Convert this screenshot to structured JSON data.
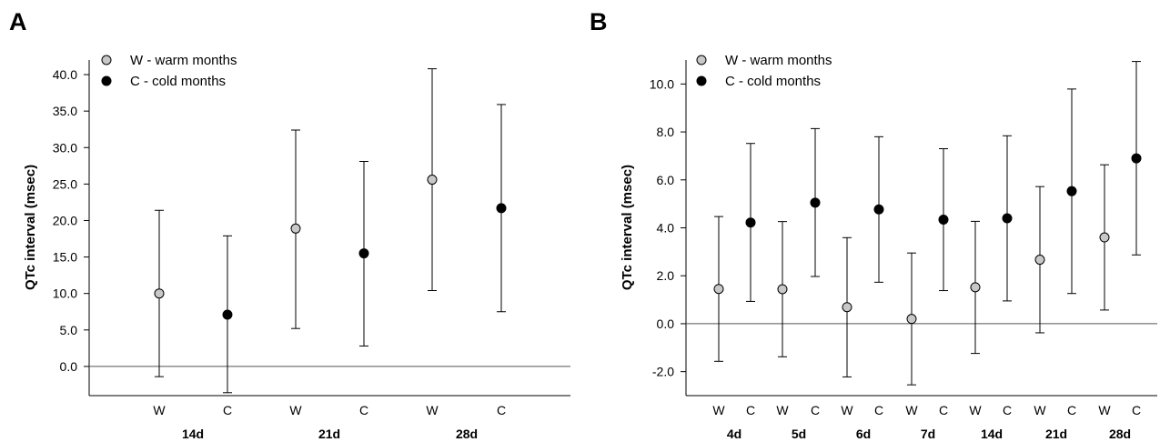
{
  "chart_data": [
    {
      "panel_label": "A",
      "type": "scatter",
      "ylabel": "QTc interval (msec)",
      "ylim": [
        -4,
        42
      ],
      "yticks": [
        0,
        5,
        10,
        15,
        20,
        25,
        30,
        35,
        40
      ],
      "ytick_labels": [
        "0.0",
        "5.0",
        "10.0",
        "15.0",
        "20.0",
        "25.0",
        "30.0",
        "35.0",
        "40.0"
      ],
      "zero_line": true,
      "grid": false,
      "legend_position": "top-left",
      "legend": [
        {
          "label": "W - warm months",
          "color": "#c8c8c8"
        },
        {
          "label": "C - cold months",
          "color": "#000000"
        }
      ],
      "groups": [
        {
          "label": "14d",
          "points": [
            {
              "category": "W",
              "season": "warm",
              "mean": 10.0,
              "lower": -1.4,
              "upper": 21.4
            },
            {
              "category": "C",
              "season": "cold",
              "mean": 7.1,
              "lower": -3.6,
              "upper": 17.9
            }
          ]
        },
        {
          "label": "21d",
          "points": [
            {
              "category": "W",
              "season": "warm",
              "mean": 18.9,
              "lower": 5.2,
              "upper": 32.4
            },
            {
              "category": "C",
              "season": "cold",
              "mean": 15.5,
              "lower": 2.8,
              "upper": 28.1
            }
          ]
        },
        {
          "label": "28d",
          "points": [
            {
              "category": "W",
              "season": "warm",
              "mean": 25.6,
              "lower": 10.4,
              "upper": 40.8
            },
            {
              "category": "C",
              "season": "cold",
              "mean": 21.7,
              "lower": 7.5,
              "upper": 35.9
            }
          ]
        }
      ]
    },
    {
      "panel_label": "B",
      "type": "scatter",
      "ylabel": "QTc interval (msec)",
      "ylim": [
        -3,
        11
      ],
      "yticks": [
        -2,
        0,
        2,
        4,
        6,
        8,
        10
      ],
      "ytick_labels": [
        "-2.0",
        "0.0",
        "2.0",
        "4.0",
        "6.0",
        "8.0",
        "10.0"
      ],
      "zero_line": true,
      "grid": false,
      "legend_position": "top-left",
      "legend": [
        {
          "label": "W - warm months",
          "color": "#c8c8c8"
        },
        {
          "label": "C - cold months",
          "color": "#000000"
        }
      ],
      "groups": [
        {
          "label": "4d",
          "points": [
            {
              "category": "W",
              "season": "warm",
              "mean": 1.45,
              "lower": -1.57,
              "upper": 4.47
            },
            {
              "category": "C",
              "season": "cold",
              "mean": 4.22,
              "lower": 0.93,
              "upper": 7.52
            }
          ]
        },
        {
          "label": "5d",
          "points": [
            {
              "category": "W",
              "season": "warm",
              "mean": 1.44,
              "lower": -1.38,
              "upper": 4.26
            },
            {
              "category": "C",
              "season": "cold",
              "mean": 5.05,
              "lower": 1.97,
              "upper": 8.14
            }
          ]
        },
        {
          "label": "6d",
          "points": [
            {
              "category": "W",
              "season": "warm",
              "mean": 0.69,
              "lower": -2.22,
              "upper": 3.59
            },
            {
              "category": "C",
              "season": "cold",
              "mean": 4.77,
              "lower": 1.73,
              "upper": 7.8
            }
          ]
        },
        {
          "label": "7d",
          "points": [
            {
              "category": "W",
              "season": "warm",
              "mean": 0.2,
              "lower": -2.55,
              "upper": 2.95
            },
            {
              "category": "C",
              "season": "cold",
              "mean": 4.34,
              "lower": 1.38,
              "upper": 7.3
            }
          ]
        },
        {
          "label": "14d",
          "points": [
            {
              "category": "W",
              "season": "warm",
              "mean": 1.52,
              "lower": -1.24,
              "upper": 4.27
            },
            {
              "category": "C",
              "season": "cold",
              "mean": 4.4,
              "lower": 0.95,
              "upper": 7.84
            }
          ]
        },
        {
          "label": "21d",
          "points": [
            {
              "category": "W",
              "season": "warm",
              "mean": 2.67,
              "lower": -0.38,
              "upper": 5.72
            },
            {
              "category": "C",
              "season": "cold",
              "mean": 5.53,
              "lower": 1.26,
              "upper": 9.79
            }
          ]
        },
        {
          "label": "28d",
          "points": [
            {
              "category": "W",
              "season": "warm",
              "mean": 3.6,
              "lower": 0.57,
              "upper": 6.63
            },
            {
              "category": "C",
              "season": "cold",
              "mean": 6.9,
              "lower": 2.87,
              "upper": 10.94
            }
          ]
        }
      ]
    }
  ]
}
